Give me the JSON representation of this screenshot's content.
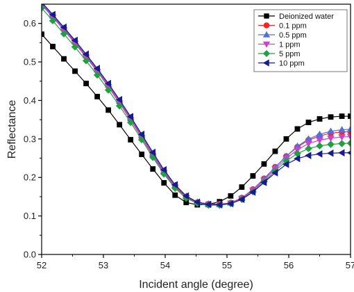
{
  "chart_data": {
    "type": "line",
    "title": "",
    "xlabel": "Incident angle (degree)",
    "ylabel": "Reflectance",
    "xlim": [
      52,
      57
    ],
    "ylim": [
      0.0,
      0.65
    ],
    "xticks": [
      "52",
      "53",
      "54",
      "55",
      "56",
      "57"
    ],
    "yticks": [
      "0.0",
      "0.1",
      "0.2",
      "0.3",
      "0.4",
      "0.5",
      "0.6"
    ],
    "legend_position": "top-right",
    "grid": false,
    "x": [
      52,
      52.18,
      52.36,
      52.54,
      52.72,
      52.9,
      53.08,
      53.26,
      53.44,
      53.62,
      53.8,
      53.98,
      54.16,
      54.34,
      54.52,
      54.7,
      54.88,
      55.06,
      55.24,
      55.42,
      55.6,
      55.78,
      55.96,
      56.14,
      56.32,
      56.5,
      56.68,
      56.86,
      57.0
    ],
    "series": [
      {
        "name": "Deionized water",
        "color": "#000000",
        "marker": "square",
        "values": [
          0.572,
          0.54,
          0.508,
          0.476,
          0.444,
          0.41,
          0.375,
          0.337,
          0.298,
          0.26,
          0.222,
          0.186,
          0.154,
          0.135,
          0.129,
          0.13,
          0.137,
          0.152,
          0.175,
          0.204,
          0.235,
          0.268,
          0.3,
          0.326,
          0.343,
          0.352,
          0.357,
          0.359,
          0.359
        ]
      },
      {
        "name": "0.1 ppm",
        "color": "#ff2020",
        "marker": "circle",
        "values": [
          0.65,
          0.618,
          0.585,
          0.55,
          0.514,
          0.477,
          0.437,
          0.395,
          0.351,
          0.305,
          0.258,
          0.214,
          0.176,
          0.149,
          0.135,
          0.131,
          0.131,
          0.134,
          0.147,
          0.169,
          0.197,
          0.227,
          0.255,
          0.279,
          0.297,
          0.308,
          0.315,
          0.318,
          0.319
        ]
      },
      {
        "name": "0.5 ppm",
        "color": "#5070e0",
        "marker": "triangle-up",
        "values": [
          0.652,
          0.62,
          0.588,
          0.553,
          0.517,
          0.48,
          0.441,
          0.399,
          0.355,
          0.309,
          0.262,
          0.217,
          0.179,
          0.151,
          0.136,
          0.131,
          0.13,
          0.134,
          0.146,
          0.168,
          0.196,
          0.226,
          0.255,
          0.281,
          0.3,
          0.312,
          0.32,
          0.324,
          0.325
        ]
      },
      {
        "name": "1 ppm",
        "color": "#d040d0",
        "marker": "triangle-down",
        "values": [
          0.648,
          0.616,
          0.583,
          0.548,
          0.512,
          0.475,
          0.435,
          0.393,
          0.349,
          0.303,
          0.256,
          0.212,
          0.174,
          0.147,
          0.133,
          0.129,
          0.129,
          0.133,
          0.145,
          0.166,
          0.193,
          0.222,
          0.249,
          0.272,
          0.288,
          0.297,
          0.302,
          0.305,
          0.306
        ]
      },
      {
        "name": "5 ppm",
        "color": "#20a040",
        "marker": "diamond",
        "values": [
          0.64,
          0.607,
          0.573,
          0.539,
          0.503,
          0.466,
          0.427,
          0.386,
          0.343,
          0.298,
          0.252,
          0.209,
          0.172,
          0.146,
          0.133,
          0.128,
          0.128,
          0.132,
          0.143,
          0.163,
          0.189,
          0.217,
          0.243,
          0.262,
          0.275,
          0.282,
          0.286,
          0.288,
          0.289
        ]
      },
      {
        "name": "10 ppm",
        "color": "#1a1a90",
        "marker": "triangle-left",
        "values": [
          0.655,
          0.623,
          0.59,
          0.556,
          0.52,
          0.483,
          0.444,
          0.402,
          0.358,
          0.312,
          0.265,
          0.22,
          0.181,
          0.152,
          0.136,
          0.13,
          0.129,
          0.132,
          0.143,
          0.162,
          0.187,
          0.212,
          0.234,
          0.249,
          0.257,
          0.261,
          0.263,
          0.264,
          0.264
        ]
      }
    ]
  }
}
